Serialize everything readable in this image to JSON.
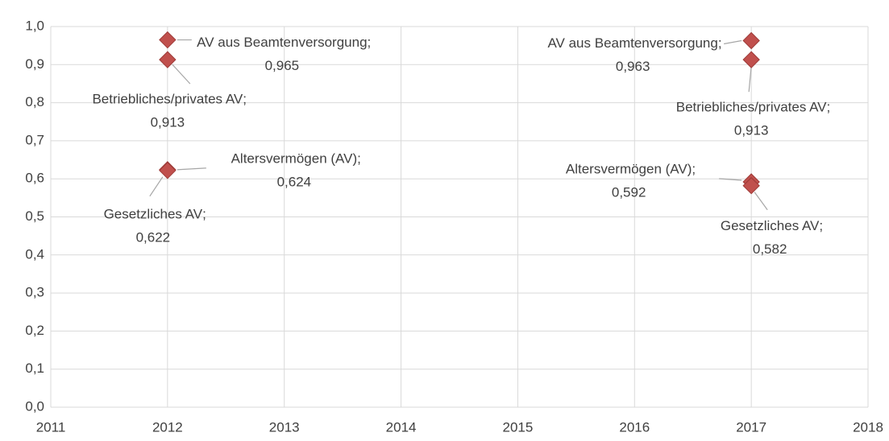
{
  "chart_data": {
    "type": "scatter",
    "x": [
      2012,
      2017
    ],
    "label_separator": ";",
    "series": [
      {
        "name": "Altersvermögen (AV)",
        "color": "#c0504d",
        "values": [
          0.624,
          0.592
        ],
        "value_labels": [
          "0,624",
          "0,592"
        ]
      },
      {
        "name": "Gesetzliches AV",
        "color": "#c0504d",
        "values": [
          0.622,
          0.582
        ],
        "value_labels": [
          "0,622",
          "0,582"
        ]
      },
      {
        "name": "Betriebliches/privates AV",
        "color": "#c0504d",
        "values": [
          0.913,
          0.913
        ],
        "value_labels": [
          "0,913",
          "0,913"
        ]
      },
      {
        "name": "AV aus Beamtenversorgung",
        "color": "#c0504d",
        "values": [
          0.965,
          0.963
        ],
        "value_labels": [
          "0,965",
          "0,963"
        ]
      }
    ],
    "xlim": [
      2011,
      2018
    ],
    "xticks": [
      2011,
      2012,
      2013,
      2014,
      2015,
      2016,
      2017,
      2018
    ],
    "ylim": [
      0,
      1
    ],
    "yticks": [
      {
        "value": 0,
        "label": "0,0"
      },
      {
        "value": 0.1,
        "label": "0,1"
      },
      {
        "value": 0.2,
        "label": "0,2"
      },
      {
        "value": 0.3,
        "label": "0,3"
      },
      {
        "value": 0.4,
        "label": "0,4"
      },
      {
        "value": 0.5,
        "label": "0,5"
      },
      {
        "value": 0.6,
        "label": "0,6"
      },
      {
        "value": 0.7,
        "label": "0,7"
      },
      {
        "value": 0.8,
        "label": "0,8"
      },
      {
        "value": 0.9,
        "label": "0,9"
      },
      {
        "value": 1,
        "label": "1,0"
      }
    ],
    "grid": true
  }
}
